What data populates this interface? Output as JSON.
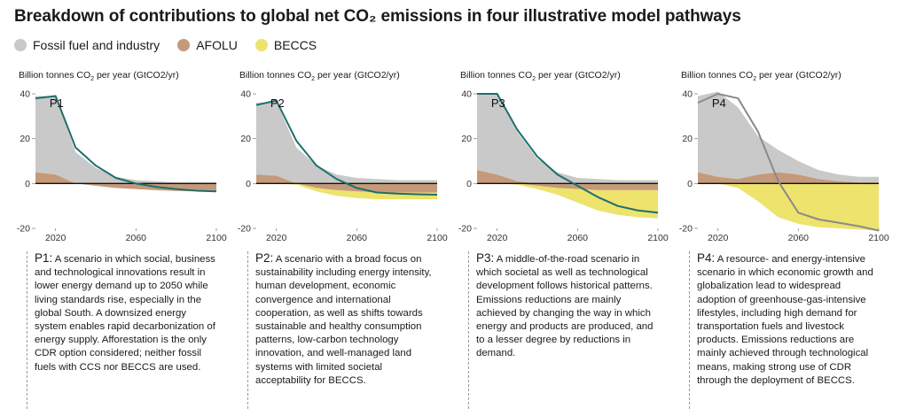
{
  "title": "Breakdown of contributions to global net CO₂ emissions in four illustrative model pathways",
  "legend": [
    {
      "label": "Fossil fuel and industry",
      "color": "#c9c9c9"
    },
    {
      "label": "AFOLU",
      "color": "#c49a7a"
    },
    {
      "label": "BECCS",
      "color": "#ede36d"
    }
  ],
  "panels": [
    {
      "ylabel_prefix": "Billion tonnes CO",
      "ylabel_sub": "2",
      "ylabel_suffix": " per year (GtCO2/yr)",
      "name": "P1",
      "desc_label": "P1:",
      "desc_text": " A scenario in which social, business and technological innovations result in lower energy demand up to 2050 while living standards rise, especially in the global South. A downsized energy system enables rapid decarbonization of energy supply. Afforestation is the only CDR option considered; neither fossil fuels with CCS nor BECCS are used."
    },
    {
      "ylabel_prefix": "Billion tonnes CO",
      "ylabel_sub": "2",
      "ylabel_suffix": " per year (GtCO2/yr)",
      "name": "P2",
      "desc_label": "P2:",
      "desc_text": " A scenario with a broad focus on sustainability including energy intensity, human development, economic convergence and international cooperation, as well as shifts towards sustainable and healthy consumption patterns, low-carbon technology innovation, and well-managed land systems with limited societal acceptability for BECCS."
    },
    {
      "ylabel_prefix": "Billion tonnes CO",
      "ylabel_sub": "2",
      "ylabel_suffix": " per year (GtCO2/yr)",
      "name": "P3",
      "desc_label": "P3:",
      "desc_text": " A middle-of-the-road scenario in which societal as well as technological development follows historical patterns. Emissions reductions are mainly achieved by changing the way in which energy and products are produced, and to a lesser degree by reductions in demand."
    },
    {
      "ylabel_prefix": "Billion tonnes CO",
      "ylabel_sub": "2",
      "ylabel_suffix": " per year (GtCO2/yr)",
      "name": "P4",
      "desc_label": "P4:",
      "desc_text": " A resource- and energy-intensive scenario in which economic growth and globalization lead to widespread adoption of greenhouse-gas-intensive lifestyles, including high demand for transportation fuels and livestock products. Emissions reductions are mainly achieved through technological means, making strong use of CDR through the deployment of BECCS."
    }
  ],
  "chart_data": [
    {
      "type": "area",
      "name": "P1",
      "x": [
        2010,
        2020,
        2030,
        2040,
        2050,
        2060,
        2070,
        2080,
        2090,
        2100
      ],
      "xticks": [
        2020,
        2060,
        2100
      ],
      "yticks": [
        -20,
        0,
        20,
        40
      ],
      "xlim": [
        2010,
        2100
      ],
      "ylim": [
        -20,
        40
      ],
      "series": [
        {
          "name": "Fossil fuel and industry",
          "values": [
            34,
            35,
            14,
            7,
            3,
            1.5,
            1,
            0.5,
            0.5,
            0.5
          ],
          "color": "#c9c9c9"
        },
        {
          "name": "AFOLU",
          "values": [
            5,
            4,
            0,
            -1,
            -2,
            -2.5,
            -3,
            -3.3,
            -3.5,
            -3.5
          ],
          "color": "#c49a7a"
        },
        {
          "name": "BECCS",
          "values": [
            0,
            0,
            0,
            0,
            0,
            0,
            0,
            0,
            0,
            0
          ],
          "color": "#ede36d"
        }
      ],
      "net": [
        38,
        39,
        16,
        8,
        2.5,
        0,
        -1.5,
        -2.5,
        -3.2,
        -3.5
      ]
    },
    {
      "type": "area",
      "name": "P2",
      "x": [
        2010,
        2020,
        2030,
        2040,
        2050,
        2060,
        2070,
        2080,
        2090,
        2100
      ],
      "xticks": [
        2020,
        2060,
        2100
      ],
      "yticks": [
        -20,
        0,
        20,
        40
      ],
      "xlim": [
        2010,
        2100
      ],
      "ylim": [
        -20,
        40
      ],
      "series": [
        {
          "name": "Fossil fuel and industry",
          "values": [
            32,
            33,
            16,
            8,
            4,
            2.5,
            2,
            1.5,
            1.5,
            1.5
          ],
          "color": "#c9c9c9"
        },
        {
          "name": "AFOLU",
          "values": [
            4,
            3.5,
            0,
            -2,
            -3,
            -3.5,
            -4,
            -4,
            -4,
            -4
          ],
          "color": "#c49a7a"
        },
        {
          "name": "BECCS",
          "values": [
            0,
            0,
            -0.5,
            -1.5,
            -2.5,
            -3,
            -3,
            -3,
            -3,
            -3
          ],
          "color": "#ede36d"
        }
      ],
      "net": [
        35,
        37,
        19,
        8,
        2,
        -2,
        -4,
        -4.5,
        -4.8,
        -5
      ]
    },
    {
      "type": "area",
      "name": "P3",
      "x": [
        2010,
        2020,
        2030,
        2040,
        2050,
        2060,
        2070,
        2080,
        2090,
        2100
      ],
      "xticks": [
        2020,
        2060,
        2100
      ],
      "yticks": [
        -20,
        0,
        20,
        40
      ],
      "xlim": [
        2010,
        2100
      ],
      "ylim": [
        -20,
        40
      ],
      "series": [
        {
          "name": "Fossil fuel and industry",
          "values": [
            34,
            36,
            22,
            11,
            5,
            2.5,
            2,
            1.5,
            1.5,
            1.5
          ],
          "color": "#c9c9c9"
        },
        {
          "name": "AFOLU",
          "values": [
            6,
            4,
            1,
            -1,
            -2,
            -2.5,
            -3,
            -3,
            -3,
            -3
          ],
          "color": "#c49a7a"
        },
        {
          "name": "BECCS",
          "values": [
            0,
            0,
            -0.5,
            -1.5,
            -3,
            -6,
            -9,
            -11,
            -12,
            -12.5
          ],
          "color": "#ede36d"
        }
      ],
      "net": [
        40,
        40,
        24,
        12,
        4,
        -1,
        -6,
        -10,
        -12,
        -13
      ]
    },
    {
      "type": "area",
      "name": "P4",
      "x": [
        2010,
        2020,
        2030,
        2040,
        2050,
        2060,
        2070,
        2080,
        2090,
        2100
      ],
      "xticks": [
        2020,
        2060,
        2100
      ],
      "yticks": [
        -20,
        0,
        20,
        40
      ],
      "xlim": [
        2010,
        2100
      ],
      "ylim": [
        -20,
        40
      ],
      "series": [
        {
          "name": "Fossil fuel and industry",
          "values": [
            34,
            38,
            32,
            17,
            10,
            6,
            4,
            3,
            2.5,
            2.5
          ],
          "color": "#c9c9c9"
        },
        {
          "name": "AFOLU",
          "values": [
            5,
            3,
            2,
            4,
            5,
            4,
            2,
            1,
            0.5,
            0.5
          ],
          "color": "#c49a7a"
        },
        {
          "name": "BECCS",
          "values": [
            0,
            0,
            -2,
            -8,
            -15,
            -18,
            -19.5,
            -20,
            -20.5,
            -21
          ],
          "color": "#ede36d"
        }
      ],
      "net": [
        36,
        40,
        38,
        23,
        1,
        -13,
        -16,
        -17.5,
        -19,
        -21
      ]
    }
  ]
}
